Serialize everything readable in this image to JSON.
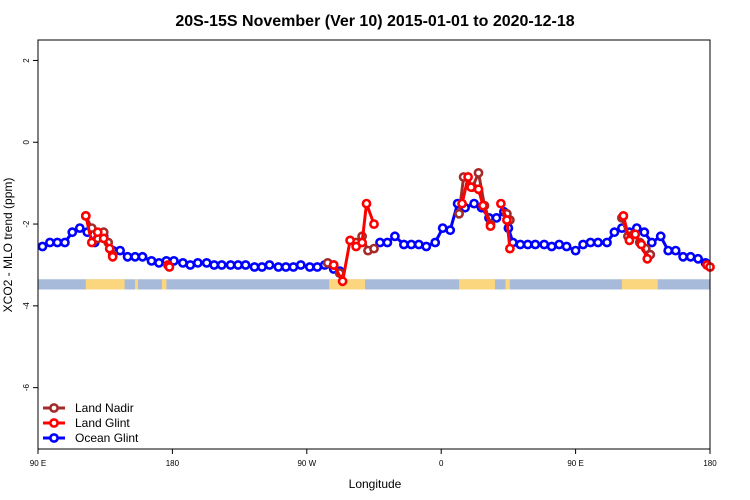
{
  "chart_data": {
    "type": "line",
    "title": "20S-15S November (Ver 10)   2015-01-01 to 2020-12-18",
    "xlabel": "Longitude",
    "ylabel": "XCO2 - MLO trend (ppm)",
    "xlim": [
      90,
      540
    ],
    "ylim": [
      -7.5,
      2.5
    ],
    "x_ticks": [
      {
        "value": 90,
        "label": "90 E"
      },
      {
        "value": 180,
        "label": "180"
      },
      {
        "value": 270,
        "label": "90 W"
      },
      {
        "value": 360,
        "label": "0"
      },
      {
        "value": 450,
        "label": "90 E"
      },
      {
        "value": 540,
        "label": "180"
      }
    ],
    "y_ticks": [
      {
        "value": 2,
        "label": "2"
      },
      {
        "value": 0,
        "label": "0"
      },
      {
        "value": -2,
        "label": "-2"
      },
      {
        "value": -4,
        "label": "-4"
      },
      {
        "value": -6,
        "label": "-6"
      }
    ],
    "surface_strip": {
      "y_top": -3.35,
      "y_bottom": -3.6,
      "ocean_color": "#a7bad9",
      "land_color": "#fcd67e",
      "land_segments": [
        [
          122,
          148
        ],
        [
          155,
          157
        ],
        [
          173,
          176
        ],
        [
          285,
          309
        ],
        [
          372,
          396
        ],
        [
          403,
          406
        ],
        [
          481,
          505
        ]
      ]
    },
    "series": [
      {
        "name": "Land Nadir",
        "color": "#a52a2a",
        "segments": [
          {
            "x": [
              122,
              126,
              130,
              134,
              137,
              140
            ],
            "y": [
              -1.8,
              -2.1,
              -2.35,
              -2.2,
              -2.45,
              -2.75
            ]
          },
          {
            "x": [
              284,
              288,
              292
            ],
            "y": [
              -2.95,
              -3.0,
              -3.2
            ]
          },
          {
            "x": [
              303,
              307,
              311,
              315
            ],
            "y": [
              -2.45,
              -2.3,
              -2.65,
              -2.6
            ]
          },
          {
            "x": [
              372,
              375,
              381,
              385,
              389,
              393
            ],
            "y": [
              -1.75,
              -0.85,
              -1.1,
              -0.75,
              -1.55,
              -2.0
            ]
          },
          {
            "x": [
              404,
              406
            ],
            "y": [
              -1.75,
              -1.9
            ]
          },
          {
            "x": [
              481,
              485,
              489,
              493,
              497,
              500
            ],
            "y": [
              -1.85,
              -2.3,
              -2.25,
              -2.45,
              -2.6,
              -2.75
            ]
          }
        ]
      },
      {
        "name": "Land Glint",
        "color": "#ff0000",
        "segments": [
          {
            "x": [
              122,
              126,
              130,
              134,
              138,
              140
            ],
            "y": [
              -1.8,
              -2.45,
              -2.2,
              -2.35,
              -2.6,
              -2.8
            ]
          },
          {
            "x": [
              177,
              178
            ],
            "y": [
              -3.0,
              -3.05
            ]
          },
          {
            "x": [
              288,
              294,
              299,
              303,
              307,
              310,
              315
            ],
            "y": [
              -3.0,
              -3.4,
              -2.4,
              -2.55,
              -2.45,
              -1.5,
              -2.0
            ]
          },
          {
            "x": [
              374,
              378,
              380,
              385,
              388,
              393
            ],
            "y": [
              -1.5,
              -0.85,
              -1.1,
              -1.15,
              -1.55,
              -2.05
            ]
          },
          {
            "x": [
              400,
              404,
              406
            ],
            "y": [
              -1.5,
              -1.9,
              -2.6
            ]
          },
          {
            "x": [
              482,
              486,
              490,
              494,
              498
            ],
            "y": [
              -1.8,
              -2.4,
              -2.25,
              -2.5,
              -2.85
            ]
          },
          {
            "x": [
              538,
              540
            ],
            "y": [
              -3.0,
              -3.05
            ]
          }
        ]
      },
      {
        "name": "Ocean Glint",
        "color": "#0000ff",
        "segments": [
          {
            "x": [
              93,
              98,
              103,
              108,
              113,
              118,
              123,
              128,
              134,
              140,
              145,
              150,
              155,
              160,
              166,
              171,
              176,
              181,
              187,
              192,
              197,
              203,
              208,
              213,
              219,
              224,
              229,
              235,
              240,
              245,
              251,
              256,
              261,
              266,
              272,
              277,
              282,
              288,
              292
            ],
            "y": [
              -2.55,
              -2.45,
              -2.45,
              -2.45,
              -2.2,
              -2.1,
              -2.2,
              -2.45,
              -2.3,
              -2.65,
              -2.65,
              -2.8,
              -2.8,
              -2.8,
              -2.9,
              -2.95,
              -2.9,
              -2.9,
              -2.95,
              -3.0,
              -2.95,
              -2.95,
              -3.0,
              -3.0,
              -3.0,
              -3.0,
              -3.0,
              -3.05,
              -3.05,
              -3.0,
              -3.05,
              -3.05,
              -3.05,
              -3.0,
              -3.05,
              -3.05,
              -3.0,
              -3.1,
              -3.15
            ]
          },
          {
            "x": [
              319,
              324,
              329,
              335,
              340,
              345,
              350,
              356,
              361,
              366,
              371,
              376,
              382,
              387,
              392,
              397,
              402,
              405,
              408,
              413,
              418,
              423,
              429,
              434,
              439,
              444,
              450,
              455,
              460,
              465,
              471,
              476,
              481,
              486,
              491,
              496,
              501,
              507,
              512,
              517,
              522,
              527,
              532,
              537
            ],
            "y": [
              -2.45,
              -2.45,
              -2.3,
              -2.5,
              -2.5,
              -2.5,
              -2.55,
              -2.45,
              -2.1,
              -2.15,
              -1.5,
              -1.6,
              -1.5,
              -1.6,
              -1.85,
              -1.85,
              -1.7,
              -2.1,
              -2.45,
              -2.5,
              -2.5,
              -2.5,
              -2.5,
              -2.55,
              -2.5,
              -2.55,
              -2.65,
              -2.5,
              -2.45,
              -2.45,
              -2.45,
              -2.2,
              -2.1,
              -2.2,
              -2.1,
              -2.2,
              -2.45,
              -2.3,
              -2.65,
              -2.65,
              -2.8,
              -2.8,
              -2.85,
              -2.95
            ]
          }
        ]
      }
    ],
    "legend": {
      "position": "bottom-left",
      "entries": [
        "Land Nadir",
        "Land Glint",
        "Ocean Glint"
      ]
    },
    "grid": false
  }
}
